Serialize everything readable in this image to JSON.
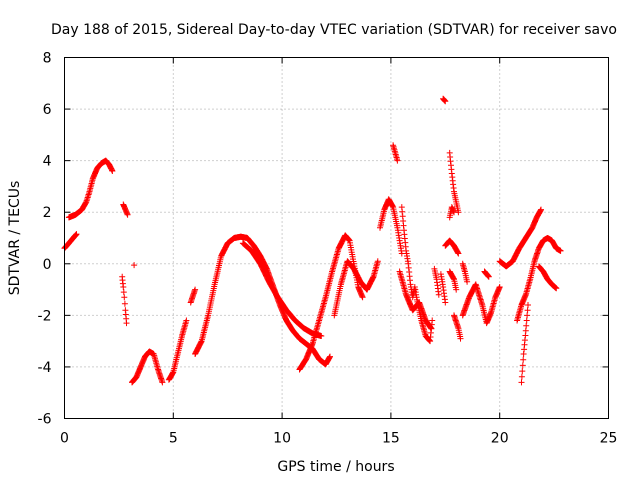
{
  "chart_data": {
    "type": "scatter",
    "title": "Day 188 of 2015, Sidereal Day-to-day VTEC variation (SDTVAR) for receiver savo",
    "xlabel": "GPS time / hours",
    "ylabel": "SDTVAR / TECUs",
    "xlim": [
      0,
      25
    ],
    "ylim": [
      -6,
      8
    ],
    "xticks": [
      "0",
      "5",
      "10",
      "15",
      "20",
      "25"
    ],
    "yticks": [
      "-6",
      "-4",
      "-2",
      "0",
      "2",
      "4",
      "6",
      "8"
    ],
    "xtick_values": [
      0,
      5,
      10,
      15,
      20,
      25
    ],
    "ytick_values": [
      -6,
      -4,
      -2,
      0,
      2,
      4,
      6,
      8
    ],
    "grid": true,
    "marker": "+",
    "series_color": "#ff0000",
    "segments": [
      [
        [
          0.0,
          0.6
        ],
        [
          0.2,
          0.8
        ],
        [
          0.4,
          1.0
        ],
        [
          0.55,
          1.15
        ]
      ],
      [
        [
          0.2,
          1.8
        ],
        [
          0.5,
          1.9
        ],
        [
          0.8,
          2.1
        ],
        [
          1.0,
          2.4
        ],
        [
          1.15,
          2.8
        ],
        [
          1.3,
          3.3
        ],
        [
          1.5,
          3.7
        ],
        [
          1.7,
          3.9
        ],
        [
          1.9,
          4.0
        ],
        [
          2.05,
          3.85
        ],
        [
          2.2,
          3.6
        ]
      ],
      [
        [
          2.7,
          2.3
        ],
        [
          2.8,
          2.1
        ],
        [
          2.9,
          1.9
        ]
      ],
      [
        [
          2.65,
          -0.5
        ],
        [
          2.7,
          -0.9
        ],
        [
          2.75,
          -1.3
        ],
        [
          2.8,
          -1.8
        ],
        [
          2.85,
          -2.3
        ]
      ],
      [
        [
          3.2,
          -0.05
        ]
      ],
      [
        [
          3.1,
          -4.6
        ],
        [
          3.3,
          -4.4
        ],
        [
          3.5,
          -4.0
        ],
        [
          3.7,
          -3.6
        ],
        [
          3.9,
          -3.4
        ],
        [
          4.1,
          -3.5
        ],
        [
          4.3,
          -4.1
        ],
        [
          4.5,
          -4.6
        ]
      ],
      [
        [
          4.8,
          -4.5
        ],
        [
          5.0,
          -4.2
        ],
        [
          5.2,
          -3.5
        ],
        [
          5.4,
          -2.8
        ],
        [
          5.6,
          -2.2
        ]
      ],
      [
        [
          5.8,
          -1.5
        ],
        [
          6.0,
          -1.0
        ]
      ],
      [
        [
          6.0,
          -3.5
        ],
        [
          6.3,
          -3.0
        ],
        [
          6.6,
          -2.0
        ],
        [
          6.9,
          -0.8
        ],
        [
          7.2,
          0.3
        ],
        [
          7.5,
          0.8
        ],
        [
          7.8,
          1.0
        ],
        [
          8.1,
          1.05
        ],
        [
          8.4,
          1.0
        ],
        [
          8.7,
          0.7
        ],
        [
          9.0,
          0.3
        ],
        [
          9.3,
          -0.2
        ],
        [
          9.6,
          -0.9
        ],
        [
          9.9,
          -1.6
        ],
        [
          10.2,
          -2.2
        ],
        [
          10.5,
          -2.6
        ],
        [
          10.8,
          -2.9
        ],
        [
          11.1,
          -3.1
        ],
        [
          11.4,
          -3.3
        ],
        [
          11.7,
          -3.7
        ],
        [
          12.0,
          -3.9
        ],
        [
          12.2,
          -3.6
        ]
      ],
      [
        [
          8.2,
          0.8
        ],
        [
          8.6,
          0.5
        ],
        [
          9.0,
          0.0
        ],
        [
          9.4,
          -0.7
        ],
        [
          9.8,
          -1.3
        ],
        [
          10.2,
          -1.8
        ],
        [
          10.6,
          -2.2
        ],
        [
          11.0,
          -2.5
        ],
        [
          11.4,
          -2.7
        ],
        [
          11.8,
          -2.8
        ]
      ],
      [
        [
          10.8,
          -4.1
        ],
        [
          11.1,
          -3.7
        ],
        [
          11.4,
          -3.1
        ],
        [
          11.7,
          -2.2
        ],
        [
          12.0,
          -1.3
        ],
        [
          12.3,
          -0.3
        ],
        [
          12.6,
          0.6
        ],
        [
          12.9,
          1.1
        ],
        [
          13.1,
          0.9
        ],
        [
          13.3,
          0.0
        ],
        [
          13.5,
          -0.9
        ],
        [
          13.7,
          -1.3
        ]
      ],
      [
        [
          12.4,
          -2.0
        ],
        [
          12.7,
          -0.8
        ],
        [
          13.0,
          0.1
        ],
        [
          13.3,
          -0.2
        ],
        [
          13.6,
          -0.7
        ],
        [
          13.9,
          -1.0
        ],
        [
          14.2,
          -0.5
        ],
        [
          14.4,
          0.1
        ]
      ],
      [
        [
          14.5,
          1.4
        ],
        [
          14.7,
          2.1
        ],
        [
          14.9,
          2.5
        ],
        [
          15.1,
          2.2
        ],
        [
          15.3,
          1.4
        ],
        [
          15.5,
          0.4
        ]
      ],
      [
        [
          15.1,
          4.6
        ],
        [
          15.2,
          4.3
        ],
        [
          15.3,
          4.0
        ]
      ],
      [
        [
          15.5,
          2.2
        ],
        [
          15.6,
          1.3
        ],
        [
          15.7,
          0.5
        ],
        [
          15.8,
          0.0
        ],
        [
          15.9,
          -0.8
        ],
        [
          16.0,
          -1.3
        ],
        [
          16.1,
          -0.9
        ],
        [
          16.2,
          -1.4
        ],
        [
          16.4,
          -2.2
        ],
        [
          16.6,
          -2.8
        ],
        [
          16.8,
          -3.0
        ],
        [
          16.9,
          -2.2
        ]
      ],
      [
        [
          15.4,
          -0.3
        ],
        [
          15.7,
          -1.2
        ],
        [
          16.0,
          -1.8
        ],
        [
          16.3,
          -1.5
        ],
        [
          16.6,
          -2.2
        ],
        [
          16.85,
          -2.5
        ]
      ],
      [
        [
          17.0,
          -0.2
        ],
        [
          17.1,
          -0.6
        ],
        [
          17.2,
          -1.2
        ]
      ],
      [
        [
          17.3,
          -0.4
        ],
        [
          17.4,
          -0.9
        ],
        [
          17.5,
          -1.5
        ]
      ],
      [
        [
          17.4,
          6.4
        ],
        [
          17.5,
          6.3
        ]
      ],
      [
        [
          17.5,
          0.7
        ],
        [
          17.7,
          0.9
        ],
        [
          17.9,
          0.7
        ],
        [
          18.1,
          0.4
        ]
      ],
      [
        [
          17.7,
          4.3
        ],
        [
          17.8,
          3.5
        ],
        [
          17.9,
          2.8
        ],
        [
          18.0,
          2.4
        ],
        [
          18.1,
          2.0
        ]
      ],
      [
        [
          17.7,
          1.8
        ],
        [
          17.8,
          2.2
        ],
        [
          17.9,
          2.0
        ]
      ],
      [
        [
          17.7,
          -0.3
        ],
        [
          17.9,
          -0.6
        ],
        [
          18.0,
          -1.0
        ]
      ],
      [
        [
          17.9,
          -2.0
        ],
        [
          18.1,
          -2.5
        ],
        [
          18.2,
          -2.9
        ]
      ],
      [
        [
          18.3,
          0.0
        ],
        [
          18.4,
          -0.3
        ],
        [
          18.5,
          -0.7
        ]
      ],
      [
        [
          18.3,
          -2.0
        ],
        [
          18.6,
          -1.3
        ],
        [
          18.9,
          -0.8
        ],
        [
          19.2,
          -1.6
        ],
        [
          19.4,
          -2.3
        ],
        [
          19.6,
          -1.9
        ],
        [
          19.8,
          -1.3
        ],
        [
          20.0,
          -0.9
        ]
      ],
      [
        [
          19.3,
          -0.3
        ],
        [
          19.5,
          -0.5
        ]
      ],
      [
        [
          20.0,
          0.1
        ],
        [
          20.3,
          -0.1
        ],
        [
          20.6,
          0.1
        ],
        [
          20.9,
          0.6
        ],
        [
          21.2,
          1.0
        ],
        [
          21.5,
          1.4
        ],
        [
          21.7,
          1.8
        ],
        [
          21.9,
          2.1
        ]
      ],
      [
        [
          20.8,
          -2.2
        ],
        [
          21.0,
          -1.6
        ],
        [
          21.2,
          -1.2
        ],
        [
          21.4,
          -0.6
        ],
        [
          21.6,
          0.1
        ],
        [
          21.8,
          0.6
        ],
        [
          22.0,
          0.9
        ],
        [
          22.2,
          1.0
        ],
        [
          22.4,
          0.9
        ],
        [
          22.6,
          0.6
        ],
        [
          22.8,
          0.5
        ]
      ],
      [
        [
          21.0,
          -4.6
        ],
        [
          21.1,
          -3.5
        ],
        [
          21.2,
          -2.6
        ],
        [
          21.3,
          -1.6
        ]
      ],
      [
        [
          21.8,
          -0.1
        ],
        [
          22.0,
          -0.3
        ],
        [
          22.2,
          -0.6
        ],
        [
          22.4,
          -0.8
        ],
        [
          22.6,
          -0.95
        ]
      ]
    ]
  }
}
